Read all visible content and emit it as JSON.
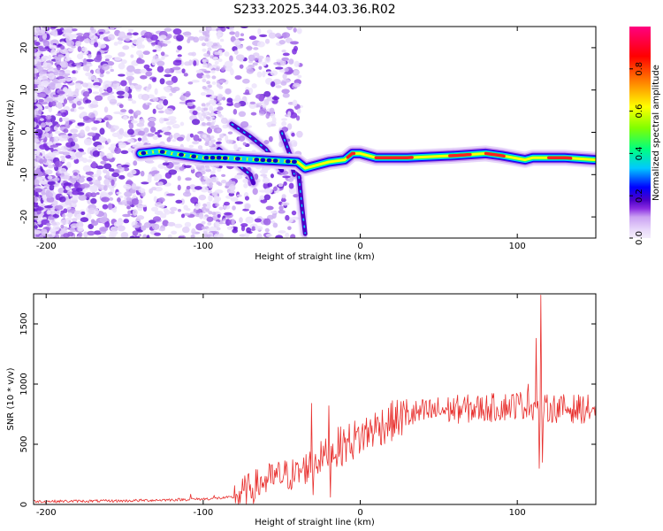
{
  "figure": {
    "title": "S233.2025.344.03.36.R02"
  },
  "chart_data": [
    {
      "type": "heatmap",
      "xlabel": "Height of straight line (km)",
      "ylabel": "Frequency (Hz)",
      "xlim": [
        -208,
        150
      ],
      "ylim": [
        -25,
        25
      ],
      "xticks": [
        -200,
        -100,
        0,
        100
      ],
      "xtick_labels": [
        "-200",
        "-100",
        "0",
        "100"
      ],
      "yticks": [
        -20,
        -10,
        0,
        10,
        20
      ],
      "ytick_labels": [
        "-20",
        "-10",
        "0",
        "10",
        "20"
      ],
      "colorbar": {
        "label": "Normalized spectral amplitude",
        "range": [
          0,
          1
        ],
        "ticks": [
          0.0,
          0.2,
          0.4,
          0.6,
          0.8
        ],
        "tick_labels": [
          "0.0",
          "0.2",
          "0.4",
          "0.6",
          "0.8"
        ],
        "stops": [
          "#f4eefc",
          "#e8d8fa",
          "#caa0f2",
          "#8a2be2",
          "#4b00c8",
          "#0000ff",
          "#00c8ff",
          "#00ff80",
          "#80ff00",
          "#ffff00",
          "#ff8000",
          "#ff0000",
          "#ff0080"
        ]
      },
      "main_band": {
        "points": [
          [
            -140,
            -5
          ],
          [
            -128,
            -4.5
          ],
          [
            -120,
            -5
          ],
          [
            -110,
            -5.5
          ],
          [
            -100,
            -6
          ],
          [
            -90,
            -6
          ],
          [
            -40,
            -7
          ],
          [
            -35,
            -8.5
          ],
          [
            -30,
            -8
          ],
          [
            -20,
            -7
          ],
          [
            -10,
            -6.5
          ],
          [
            -5,
            -5
          ],
          [
            0,
            -5
          ],
          [
            10,
            -6
          ],
          [
            30,
            -6
          ],
          [
            60,
            -5.5
          ],
          [
            80,
            -5
          ],
          [
            90,
            -5.5
          ],
          [
            105,
            -6.5
          ],
          [
            110,
            -6
          ],
          [
            130,
            -6
          ],
          [
            150,
            -6.5
          ]
        ]
      },
      "streaks": [
        {
          "points": [
            [
              -90,
              -4
            ],
            [
              -70,
              -10
            ],
            [
              -68,
              -12
            ]
          ]
        },
        {
          "points": [
            [
              -82,
              2
            ],
            [
              -70,
              -1
            ],
            [
              -60,
              -4
            ],
            [
              -50,
              -9
            ]
          ]
        },
        {
          "points": [
            [
              -50,
              0
            ],
            [
              -45,
              -5
            ],
            [
              -42,
              -10
            ]
          ]
        },
        {
          "points": [
            [
              -40,
              -7
            ],
            [
              -37,
              -18
            ],
            [
              -35,
              -24
            ]
          ]
        }
      ]
    },
    {
      "type": "line",
      "xlabel": "Height of straight line (km)",
      "ylabel": "SNR (10 * v/v)",
      "xlim": [
        -208,
        150
      ],
      "ylim": [
        0,
        1750
      ],
      "xticks": [
        -200,
        -100,
        0,
        100
      ],
      "xtick_labels": [
        "-200",
        "-100",
        "0",
        "100"
      ],
      "yticks": [
        0,
        500,
        1000,
        1500
      ],
      "ytick_labels": [
        "0",
        "500",
        "1000",
        "1500"
      ],
      "color": "#e8302e",
      "trend": [
        [
          -208,
          25
        ],
        [
          -150,
          30
        ],
        [
          -100,
          45
        ],
        [
          -80,
          60
        ],
        [
          -70,
          130
        ],
        [
          -60,
          200
        ],
        [
          -50,
          240
        ],
        [
          -40,
          250
        ],
        [
          -35,
          300
        ],
        [
          -30,
          350
        ],
        [
          -20,
          430
        ],
        [
          -10,
          500
        ],
        [
          0,
          560
        ],
        [
          10,
          640
        ],
        [
          20,
          690
        ],
        [
          30,
          740
        ],
        [
          40,
          760
        ],
        [
          50,
          780
        ],
        [
          60,
          790
        ],
        [
          70,
          795
        ],
        [
          80,
          800
        ],
        [
          90,
          810
        ],
        [
          100,
          830
        ],
        [
          110,
          820
        ],
        [
          115,
          780
        ],
        [
          120,
          800
        ],
        [
          150,
          790
        ]
      ],
      "spikes": [
        [
          -31,
          840
        ],
        [
          -30,
          80
        ],
        [
          -20,
          820
        ],
        [
          -19,
          60
        ],
        [
          -108,
          85
        ],
        [
          -93,
          75
        ],
        [
          112,
          1380
        ],
        [
          114,
          300
        ],
        [
          115,
          1740
        ],
        [
          116,
          350
        ],
        [
          107,
          1000
        ]
      ]
    }
  ]
}
